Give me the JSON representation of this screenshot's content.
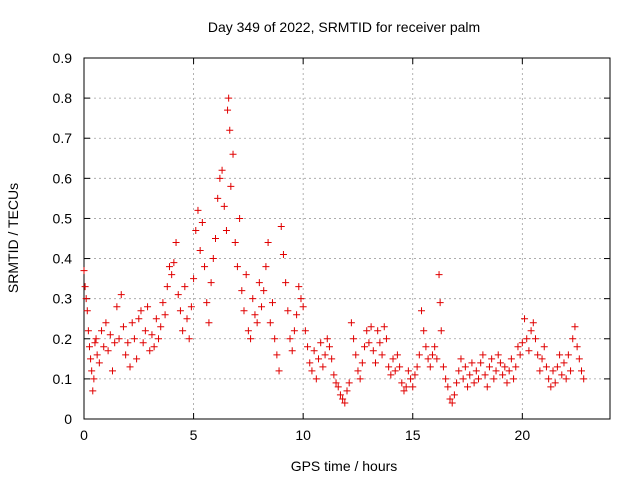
{
  "chart_data": {
    "type": "scatter",
    "title": "Day 349 of 2022, SRMTID for receiver palm",
    "xlabel": "GPS time / hours",
    "ylabel": "SRMTID / TECUs",
    "xlim": [
      0,
      24
    ],
    "ylim": [
      0,
      0.9
    ],
    "xticks": [
      0,
      5,
      10,
      15,
      20
    ],
    "yticks": [
      0,
      0.1,
      0.2,
      0.3,
      0.4,
      0.5,
      0.6,
      0.7,
      0.8,
      0.9
    ],
    "xtick_labels": [
      "0",
      "5",
      "10",
      "15",
      "20"
    ],
    "ytick_labels": [
      "0",
      "0.1",
      "0.2",
      "0.3",
      "0.4",
      "0.5",
      "0.6",
      "0.7",
      "0.8",
      "0.9"
    ],
    "grid": true,
    "marker": "+",
    "color": "#e00000",
    "series": [
      {
        "name": "SRMTID",
        "points": [
          [
            0.0,
            0.37
          ],
          [
            0.05,
            0.33
          ],
          [
            0.1,
            0.3
          ],
          [
            0.15,
            0.27
          ],
          [
            0.2,
            0.22
          ],
          [
            0.25,
            0.18
          ],
          [
            0.3,
            0.15
          ],
          [
            0.35,
            0.12
          ],
          [
            0.4,
            0.07
          ],
          [
            0.45,
            0.1
          ],
          [
            0.5,
            0.19
          ],
          [
            0.55,
            0.2
          ],
          [
            0.6,
            0.16
          ],
          [
            0.7,
            0.14
          ],
          [
            0.8,
            0.22
          ],
          [
            0.9,
            0.18
          ],
          [
            1.0,
            0.24
          ],
          [
            1.1,
            0.17
          ],
          [
            1.2,
            0.21
          ],
          [
            1.3,
            0.12
          ],
          [
            1.4,
            0.19
          ],
          [
            1.5,
            0.28
          ],
          [
            1.6,
            0.2
          ],
          [
            1.7,
            0.31
          ],
          [
            1.8,
            0.23
          ],
          [
            1.9,
            0.16
          ],
          [
            2.0,
            0.19
          ],
          [
            2.1,
            0.13
          ],
          [
            2.2,
            0.24
          ],
          [
            2.3,
            0.2
          ],
          [
            2.4,
            0.15
          ],
          [
            2.5,
            0.25
          ],
          [
            2.6,
            0.27
          ],
          [
            2.7,
            0.19
          ],
          [
            2.8,
            0.22
          ],
          [
            2.9,
            0.28
          ],
          [
            3.0,
            0.17
          ],
          [
            3.1,
            0.21
          ],
          [
            3.2,
            0.18
          ],
          [
            3.3,
            0.25
          ],
          [
            3.4,
            0.2
          ],
          [
            3.5,
            0.23
          ],
          [
            3.6,
            0.29
          ],
          [
            3.7,
            0.26
          ],
          [
            3.8,
            0.33
          ],
          [
            3.9,
            0.38
          ],
          [
            4.0,
            0.36
          ],
          [
            4.1,
            0.39
          ],
          [
            4.2,
            0.44
          ],
          [
            4.3,
            0.31
          ],
          [
            4.4,
            0.27
          ],
          [
            4.5,
            0.22
          ],
          [
            4.6,
            0.33
          ],
          [
            4.7,
            0.25
          ],
          [
            4.8,
            0.2
          ],
          [
            4.9,
            0.28
          ],
          [
            5.0,
            0.35
          ],
          [
            5.1,
            0.47
          ],
          [
            5.2,
            0.52
          ],
          [
            5.3,
            0.42
          ],
          [
            5.4,
            0.49
          ],
          [
            5.5,
            0.38
          ],
          [
            5.6,
            0.29
          ],
          [
            5.7,
            0.24
          ],
          [
            5.8,
            0.34
          ],
          [
            5.9,
            0.4
          ],
          [
            6.0,
            0.45
          ],
          [
            6.1,
            0.55
          ],
          [
            6.2,
            0.6
          ],
          [
            6.3,
            0.62
          ],
          [
            6.4,
            0.53
          ],
          [
            6.5,
            0.47
          ],
          [
            6.55,
            0.77
          ],
          [
            6.6,
            0.8
          ],
          [
            6.65,
            0.72
          ],
          [
            6.7,
            0.58
          ],
          [
            6.8,
            0.66
          ],
          [
            6.9,
            0.44
          ],
          [
            7.0,
            0.38
          ],
          [
            7.1,
            0.5
          ],
          [
            7.2,
            0.32
          ],
          [
            7.3,
            0.27
          ],
          [
            7.4,
            0.36
          ],
          [
            7.5,
            0.22
          ],
          [
            7.6,
            0.2
          ],
          [
            7.7,
            0.3
          ],
          [
            7.8,
            0.26
          ],
          [
            7.9,
            0.24
          ],
          [
            8.0,
            0.34
          ],
          [
            8.1,
            0.28
          ],
          [
            8.2,
            0.32
          ],
          [
            8.3,
            0.38
          ],
          [
            8.4,
            0.44
          ],
          [
            8.5,
            0.24
          ],
          [
            8.6,
            0.29
          ],
          [
            8.7,
            0.2
          ],
          [
            8.8,
            0.16
          ],
          [
            8.9,
            0.12
          ],
          [
            9.0,
            0.48
          ],
          [
            9.1,
            0.41
          ],
          [
            9.2,
            0.34
          ],
          [
            9.3,
            0.27
          ],
          [
            9.4,
            0.2
          ],
          [
            9.5,
            0.17
          ],
          [
            9.6,
            0.22
          ],
          [
            9.7,
            0.26
          ],
          [
            9.8,
            0.33
          ],
          [
            9.9,
            0.3
          ],
          [
            10.0,
            0.28
          ],
          [
            10.1,
            0.22
          ],
          [
            10.2,
            0.18
          ],
          [
            10.3,
            0.14
          ],
          [
            10.4,
            0.12
          ],
          [
            10.5,
            0.17
          ],
          [
            10.6,
            0.1
          ],
          [
            10.7,
            0.15
          ],
          [
            10.8,
            0.19
          ],
          [
            10.9,
            0.13
          ],
          [
            11.0,
            0.16
          ],
          [
            11.1,
            0.2
          ],
          [
            11.2,
            0.18
          ],
          [
            11.3,
            0.15
          ],
          [
            11.4,
            0.11
          ],
          [
            11.5,
            0.09
          ],
          [
            11.6,
            0.08
          ],
          [
            11.7,
            0.06
          ],
          [
            11.8,
            0.05
          ],
          [
            11.9,
            0.04
          ],
          [
            12.0,
            0.07
          ],
          [
            12.1,
            0.09
          ],
          [
            12.2,
            0.24
          ],
          [
            12.3,
            0.2
          ],
          [
            12.4,
            0.16
          ],
          [
            12.5,
            0.12
          ],
          [
            12.6,
            0.1
          ],
          [
            12.7,
            0.14
          ],
          [
            12.8,
            0.18
          ],
          [
            12.9,
            0.22
          ],
          [
            13.0,
            0.19
          ],
          [
            13.1,
            0.23
          ],
          [
            13.2,
            0.17
          ],
          [
            13.3,
            0.14
          ],
          [
            13.4,
            0.22
          ],
          [
            13.5,
            0.19
          ],
          [
            13.6,
            0.16
          ],
          [
            13.7,
            0.23
          ],
          [
            13.8,
            0.2
          ],
          [
            13.9,
            0.13
          ],
          [
            14.0,
            0.11
          ],
          [
            14.1,
            0.15
          ],
          [
            14.2,
            0.12
          ],
          [
            14.3,
            0.16
          ],
          [
            14.4,
            0.13
          ],
          [
            14.5,
            0.09
          ],
          [
            14.6,
            0.07
          ],
          [
            14.7,
            0.08
          ],
          [
            14.8,
            0.12
          ],
          [
            14.9,
            0.1
          ],
          [
            15.0,
            0.08
          ],
          [
            15.1,
            0.11
          ],
          [
            15.2,
            0.13
          ],
          [
            15.3,
            0.16
          ],
          [
            15.4,
            0.27
          ],
          [
            15.5,
            0.22
          ],
          [
            15.6,
            0.18
          ],
          [
            15.7,
            0.15
          ],
          [
            15.8,
            0.13
          ],
          [
            15.9,
            0.16
          ],
          [
            16.0,
            0.18
          ],
          [
            16.1,
            0.15
          ],
          [
            16.2,
            0.36
          ],
          [
            16.25,
            0.29
          ],
          [
            16.3,
            0.22
          ],
          [
            16.4,
            0.13
          ],
          [
            16.5,
            0.1
          ],
          [
            16.6,
            0.08
          ],
          [
            16.7,
            0.05
          ],
          [
            16.8,
            0.04
          ],
          [
            16.9,
            0.06
          ],
          [
            17.0,
            0.09
          ],
          [
            17.1,
            0.12
          ],
          [
            17.2,
            0.15
          ],
          [
            17.3,
            0.1
          ],
          [
            17.4,
            0.13
          ],
          [
            17.5,
            0.08
          ],
          [
            17.6,
            0.11
          ],
          [
            17.7,
            0.14
          ],
          [
            17.8,
            0.09
          ],
          [
            17.9,
            0.12
          ],
          [
            18.0,
            0.1
          ],
          [
            18.1,
            0.14
          ],
          [
            18.2,
            0.16
          ],
          [
            18.3,
            0.11
          ],
          [
            18.4,
            0.08
          ],
          [
            18.5,
            0.13
          ],
          [
            18.6,
            0.15
          ],
          [
            18.7,
            0.1
          ],
          [
            18.8,
            0.12
          ],
          [
            18.9,
            0.16
          ],
          [
            19.0,
            0.14
          ],
          [
            19.1,
            0.11
          ],
          [
            19.2,
            0.13
          ],
          [
            19.3,
            0.09
          ],
          [
            19.4,
            0.12
          ],
          [
            19.5,
            0.15
          ],
          [
            19.6,
            0.1
          ],
          [
            19.7,
            0.13
          ],
          [
            19.8,
            0.18
          ],
          [
            19.9,
            0.16
          ],
          [
            20.0,
            0.19
          ],
          [
            20.1,
            0.25
          ],
          [
            20.2,
            0.2
          ],
          [
            20.3,
            0.17
          ],
          [
            20.4,
            0.22
          ],
          [
            20.5,
            0.24
          ],
          [
            20.6,
            0.2
          ],
          [
            20.7,
            0.16
          ],
          [
            20.8,
            0.12
          ],
          [
            20.9,
            0.15
          ],
          [
            21.0,
            0.18
          ],
          [
            21.1,
            0.13
          ],
          [
            21.2,
            0.1
          ],
          [
            21.3,
            0.08
          ],
          [
            21.4,
            0.12
          ],
          [
            21.5,
            0.09
          ],
          [
            21.6,
            0.13
          ],
          [
            21.7,
            0.16
          ],
          [
            21.8,
            0.11
          ],
          [
            21.9,
            0.14
          ],
          [
            22.0,
            0.1
          ],
          [
            22.1,
            0.16
          ],
          [
            22.2,
            0.12
          ],
          [
            22.3,
            0.2
          ],
          [
            22.4,
            0.23
          ],
          [
            22.5,
            0.18
          ],
          [
            22.6,
            0.15
          ],
          [
            22.7,
            0.12
          ],
          [
            22.8,
            0.1
          ]
        ]
      }
    ]
  }
}
